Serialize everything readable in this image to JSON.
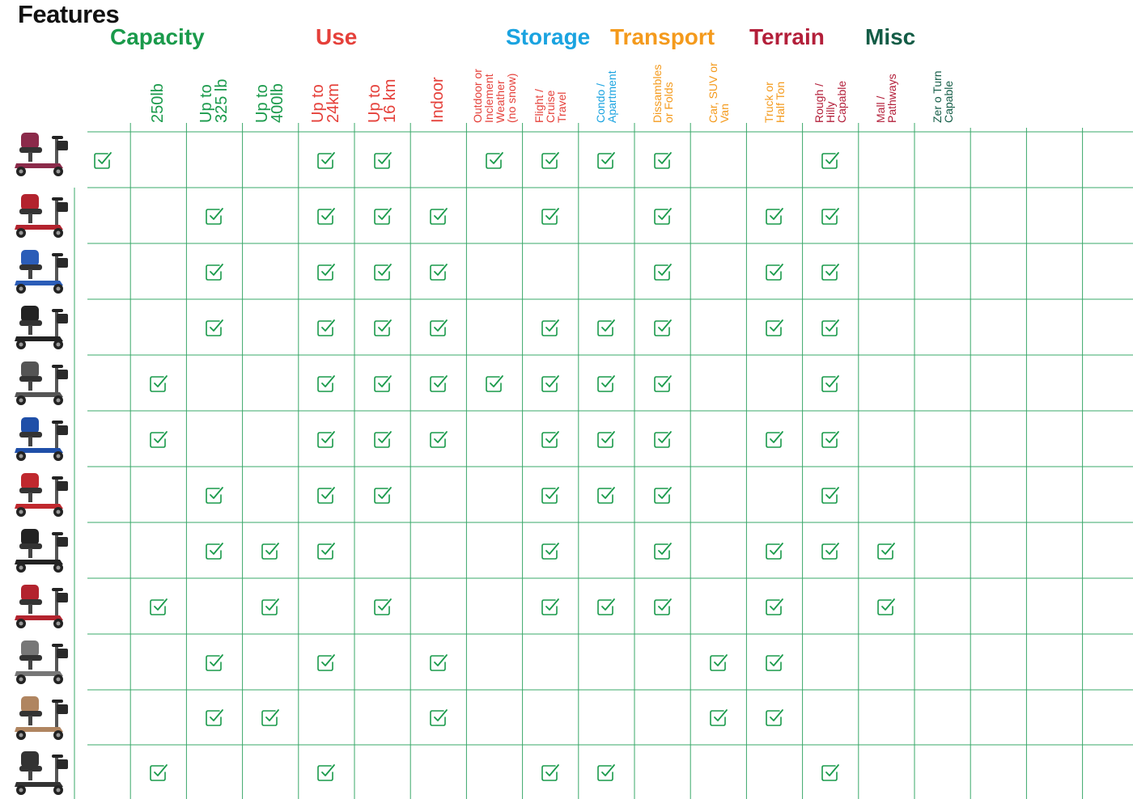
{
  "title": "Features",
  "categories": [
    {
      "name": "Capacity",
      "color": "#1a9a4b"
    },
    {
      "name": "Use",
      "color": "#e5403a"
    },
    {
      "name": "Storage",
      "color": "#1aa3e0"
    },
    {
      "name": "Transport",
      "color": "#f49a1c"
    },
    {
      "name": "Terrain",
      "color": "#b31f3a"
    },
    {
      "name": "Misc",
      "color": "#135c46"
    }
  ],
  "columns": [
    {
      "lines": [
        "250lb"
      ],
      "color": "#1a9a4b",
      "big": true
    },
    {
      "lines": [
        "Up to",
        "325 lb"
      ],
      "color": "#1a9a4b",
      "big": true
    },
    {
      "lines": [
        "Up to",
        "400lb"
      ],
      "color": "#1a9a4b",
      "big": true
    },
    {
      "lines": [
        "Up to",
        "24km"
      ],
      "color": "#e5403a",
      "big": true
    },
    {
      "lines": [
        "Up to",
        "16 km"
      ],
      "color": "#e5403a",
      "big": true
    },
    {
      "lines": [
        "Indoor"
      ],
      "color": "#e5403a",
      "big": true
    },
    {
      "lines": [
        "Outdoor or",
        "Inclement",
        "Weather",
        "(no snow)"
      ],
      "color": "#e5403a",
      "big": false
    },
    {
      "lines": [
        "Flight /",
        "Cruise",
        "Travel"
      ],
      "color": "#e5403a",
      "big": false
    },
    {
      "lines": [
        "Condo /",
        "Apartment"
      ],
      "color": "#1aa3e0",
      "big": false
    },
    {
      "lines": [
        "Dissambles",
        "or Folds"
      ],
      "color": "#f49a1c",
      "big": false
    },
    {
      "lines": [
        "Car, SUV or",
        "Van"
      ],
      "color": "#f49a1c",
      "big": false
    },
    {
      "lines": [
        "Truck or",
        "Half Ton"
      ],
      "color": "#f49a1c",
      "big": false
    },
    {
      "lines": [
        "Rough /",
        "Hilly",
        "Capable"
      ],
      "color": "#b31f3a",
      "big": false
    },
    {
      "lines": [
        "Mall /",
        "Pathways"
      ],
      "color": "#b31f3a",
      "big": false
    },
    {
      "lines": [
        "Zer o Turn",
        "Capable"
      ],
      "color": "#135c46",
      "big": false
    }
  ],
  "rows": [
    {
      "scooter": "folding-scooter-icon",
      "accent": "#8b2a4a",
      "checks": [
        1,
        0,
        0,
        0,
        1,
        1,
        0,
        1,
        1,
        1,
        1,
        0,
        0,
        1,
        0
      ]
    },
    {
      "scooter": "scooter-icon",
      "accent": "#b3232e",
      "checks": [
        0,
        0,
        1,
        0,
        1,
        1,
        1,
        0,
        1,
        0,
        1,
        0,
        1,
        1,
        0
      ]
    },
    {
      "scooter": "scooter-icon",
      "accent": "#2b5db8",
      "checks": [
        0,
        0,
        1,
        0,
        1,
        1,
        1,
        0,
        0,
        0,
        1,
        0,
        1,
        1,
        0
      ]
    },
    {
      "scooter": "scooter-icon",
      "accent": "#222222",
      "checks": [
        0,
        0,
        1,
        0,
        1,
        1,
        1,
        0,
        1,
        1,
        1,
        0,
        1,
        1,
        0
      ]
    },
    {
      "scooter": "scooter-icon",
      "accent": "#555555",
      "checks": [
        0,
        1,
        0,
        0,
        1,
        1,
        1,
        1,
        1,
        1,
        1,
        0,
        0,
        1,
        0
      ]
    },
    {
      "scooter": "scooter-icon",
      "accent": "#1f4fa8",
      "checks": [
        0,
        1,
        0,
        0,
        1,
        1,
        1,
        0,
        1,
        1,
        1,
        0,
        1,
        1,
        0
      ]
    },
    {
      "scooter": "scooter-icon",
      "accent": "#c0282e",
      "checks": [
        0,
        0,
        1,
        0,
        1,
        1,
        0,
        0,
        1,
        1,
        1,
        0,
        0,
        1,
        0
      ]
    },
    {
      "scooter": "scooter-icon",
      "accent": "#222222",
      "checks": [
        0,
        0,
        1,
        1,
        1,
        0,
        0,
        0,
        1,
        0,
        1,
        0,
        1,
        1,
        1
      ]
    },
    {
      "scooter": "scooter-icon",
      "accent": "#b3232e",
      "checks": [
        0,
        1,
        0,
        1,
        0,
        1,
        0,
        0,
        1,
        1,
        1,
        0,
        1,
        0,
        1
      ]
    },
    {
      "scooter": "scooter-icon",
      "accent": "#777777",
      "checks": [
        0,
        0,
        1,
        0,
        1,
        0,
        1,
        0,
        0,
        0,
        0,
        1,
        1,
        0,
        0
      ]
    },
    {
      "scooter": "scooter-icon",
      "accent": "#b08560",
      "checks": [
        0,
        0,
        1,
        1,
        0,
        0,
        1,
        0,
        0,
        0,
        0,
        1,
        1,
        0,
        0
      ]
    },
    {
      "scooter": "scooter-icon",
      "accent": "#333333",
      "checks": [
        0,
        1,
        0,
        0,
        1,
        0,
        0,
        0,
        1,
        1,
        0,
        0,
        0,
        1,
        0
      ]
    }
  ],
  "styles": {
    "grid_color": "#3aa86a",
    "check_color": "#1a9a4b"
  }
}
